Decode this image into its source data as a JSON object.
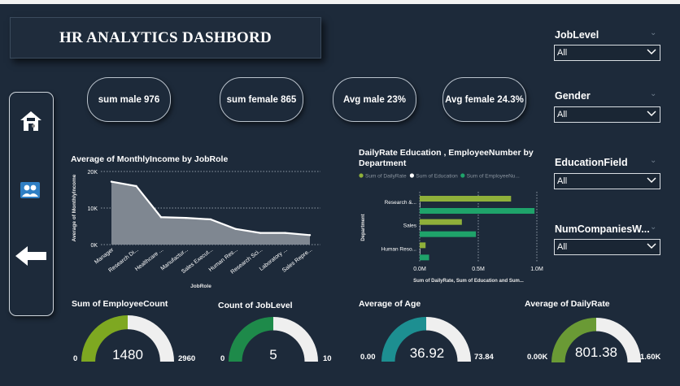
{
  "title": "HR ANALYTICS DASHBORD",
  "kpis": [
    {
      "label": "sum male 976"
    },
    {
      "label": "sum female 865"
    },
    {
      "label": "Avg male 23%"
    },
    {
      "label": "Avg female 24.3%"
    }
  ],
  "nav": {
    "home_icon": "home-icon",
    "people_icon": "people-icon",
    "back_icon": "back-arrow-icon"
  },
  "slicers": [
    {
      "label": "JobLevel",
      "value": "All"
    },
    {
      "label": "Gender",
      "value": "All"
    },
    {
      "label": "EducationField",
      "value": "All"
    },
    {
      "label": "NumCompaniesW...",
      "value": "All"
    }
  ],
  "chart_data": [
    {
      "type": "area",
      "title": "Average of MonthlyIncome by JobRole",
      "xlabel": "JobRole",
      "ylabel": "Average of MonthlyIncome",
      "ylim": [
        0,
        20000
      ],
      "yticks": [
        "0K",
        "10K",
        "20K"
      ],
      "grid": true,
      "categories": [
        "Manager",
        "Research Di...",
        "Healthcare ...",
        "Manufactur...",
        "Sales Execut...",
        "Human Res...",
        "Research Sci...",
        "Laboratory ...",
        "Sales Repre..."
      ],
      "values": [
        17200,
        16000,
        7500,
        7300,
        6900,
        4300,
        3200,
        3200,
        2600
      ],
      "colors": {
        "line": "#ffffff",
        "fill": "#7f8791"
      }
    },
    {
      "type": "bar",
      "orientation": "horizontal",
      "title": "DailyRate Education , EmployeeNumber by Department",
      "xlabel": "Sum of DailyRate, Sum of Education and Sum...",
      "ylabel": "Department",
      "xlim": [
        0,
        1000000
      ],
      "xticks": [
        "0.0M",
        "0.5M",
        "1.0M"
      ],
      "legend": [
        "Sum of DailyRate",
        "Sum of Education",
        "Sum of EmployeeNu..."
      ],
      "legend_placement": "top",
      "categories": [
        "Research &...",
        "Sales",
        "Human Reso..."
      ],
      "series": [
        {
          "name": "Sum of DailyRate",
          "values": [
            780000,
            360000,
            50000
          ],
          "color": "#8fb03a"
        },
        {
          "name": "Sum of Education",
          "values": [
            1900,
            900,
            180
          ],
          "color": "#ffffff"
        },
        {
          "name": "Sum of EmployeeNu...",
          "values": [
            980000,
            480000,
            80000
          ],
          "color": "#1fa36a"
        }
      ]
    }
  ],
  "gauges": [
    {
      "title": "Sum of EmployeeCount",
      "min": "0",
      "max": "2960",
      "display": "1480",
      "fraction": 0.5,
      "color": "#7ea821"
    },
    {
      "title": "Count of JobLevel",
      "min": "0",
      "max": "10",
      "display": "5",
      "fraction": 0.5,
      "color": "#1e8a4a"
    },
    {
      "title": "Average of Age",
      "min": "0.00",
      "max": "73.84",
      "display": "36.92",
      "fraction": 0.5,
      "color": "#1d8f91"
    },
    {
      "title": "Average of DailyRate",
      "min": "0.00K",
      "max": "1.60K",
      "display": "801.38",
      "fraction": 0.5,
      "color": "#6a9a35"
    }
  ]
}
